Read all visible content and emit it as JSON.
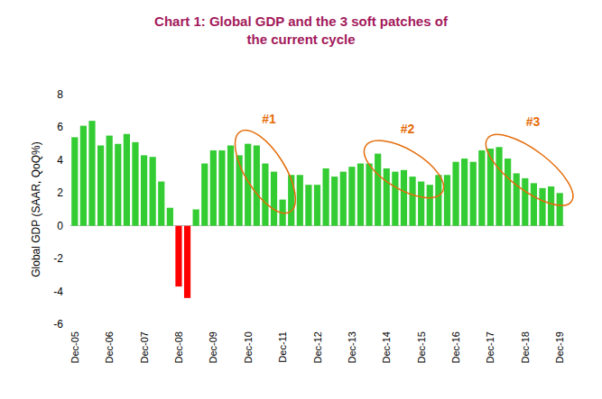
{
  "chart_data": {
    "type": "bar",
    "title": "Chart 1: Global GDP and the 3 soft patches of\nthe current cycle",
    "y_label": "Global GDP (SAAR, QoQ%)",
    "categories": [
      "Dec-05",
      null,
      null,
      null,
      "Dec-06",
      null,
      null,
      null,
      "Dec-07",
      null,
      null,
      null,
      "Dec-08",
      null,
      null,
      null,
      "Dec-09",
      null,
      null,
      null,
      "Dec-10",
      null,
      null,
      null,
      "Dec-11",
      null,
      null,
      null,
      "Dec-12",
      null,
      null,
      null,
      "Dec-13",
      null,
      null,
      null,
      "Dec-14",
      null,
      null,
      null,
      "Dec-15",
      null,
      null,
      null,
      "Dec-16",
      null,
      null,
      null,
      "Dec-17",
      null,
      null,
      null,
      "Dec-18",
      null,
      null,
      null,
      "Dec-19"
    ],
    "values": [
      5.4,
      6.1,
      6.4,
      4.9,
      5.5,
      5.0,
      5.6,
      5.1,
      4.3,
      4.2,
      2.7,
      1.1,
      -3.7,
      -4.4,
      1.0,
      3.8,
      4.6,
      4.6,
      4.9,
      4.3,
      5.0,
      4.9,
      3.8,
      3.3,
      1.6,
      3.1,
      3.1,
      2.5,
      2.5,
      3.5,
      3.0,
      3.3,
      3.6,
      3.8,
      3.8,
      4.4,
      3.5,
      3.3,
      3.4,
      3.0,
      2.7,
      2.5,
      3.1,
      3.1,
      3.9,
      4.1,
      3.9,
      4.6,
      4.7,
      4.8,
      4.1,
      3.2,
      2.9,
      2.6,
      2.3,
      2.4,
      2.0
    ],
    "colors": [
      "#33cc33",
      "#33cc33",
      "#33cc33",
      "#33cc33",
      "#33cc33",
      "#33cc33",
      "#33cc33",
      "#33cc33",
      "#33cc33",
      "#33cc33",
      "#33cc33",
      "#33cc33",
      "#ff0000",
      "#ff0000",
      "#33cc33",
      "#33cc33",
      "#33cc33",
      "#33cc33",
      "#33cc33",
      "#33cc33",
      "#33cc33",
      "#33cc33",
      "#33cc33",
      "#33cc33",
      "#33cc33",
      "#33cc33",
      "#33cc33",
      "#33cc33",
      "#33cc33",
      "#33cc33",
      "#33cc33",
      "#33cc33",
      "#33cc33",
      "#33cc33",
      "#33cc33",
      "#33cc33",
      "#33cc33",
      "#33cc33",
      "#33cc33",
      "#33cc33",
      "#33cc33",
      "#33cc33",
      "#33cc33",
      "#33cc33",
      "#33cc33",
      "#33cc33",
      "#33cc33",
      "#33cc33",
      "#33cc33",
      "#33cc33",
      "#33cc33",
      "#33cc33",
      "#33cc33",
      "#33cc33",
      "#33cc33",
      "#33cc33",
      "#33cc33"
    ],
    "ylim": [
      -6,
      8
    ],
    "yticks": [
      -6,
      -4,
      -2,
      0,
      2,
      4,
      6,
      8
    ],
    "grid": false,
    "annotations": [
      {
        "text": "#1",
        "start": 20,
        "end": 24
      },
      {
        "text": "#2",
        "start": 35,
        "end": 41
      },
      {
        "text": "#3",
        "start": 49,
        "end": 56
      }
    ]
  }
}
